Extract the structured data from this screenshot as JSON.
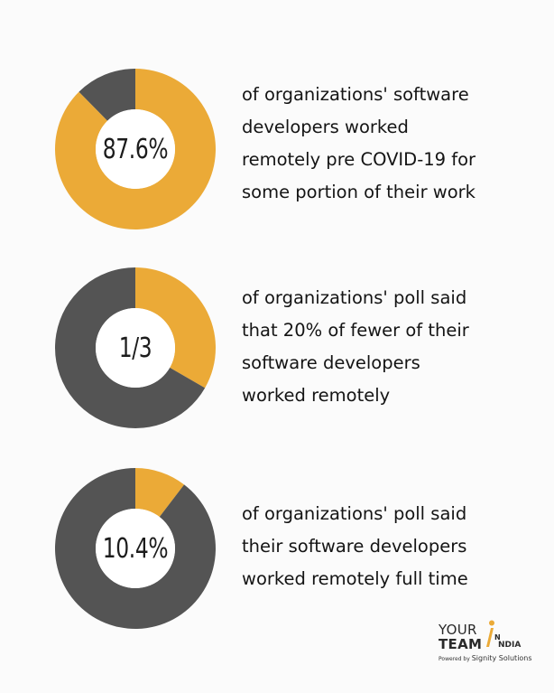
{
  "colors": {
    "accent": "#EBAA37",
    "remainder": "#545454",
    "background": "#FBFBFB",
    "text": "#141414"
  },
  "chart_data": [
    {
      "type": "pie",
      "variant": "donut",
      "center_label": "87.6%",
      "slices": [
        {
          "value": 87.6
        },
        {
          "value": 12.4
        }
      ],
      "caption_lines": [
        "of organizations' software",
        "developers worked",
        "remotely pre COVID-19 for",
        "some portion of their work"
      ]
    },
    {
      "type": "pie",
      "variant": "donut",
      "center_label": "1/3",
      "slices": [
        {
          "value": 33.3
        },
        {
          "value": 66.7
        }
      ],
      "caption_lines": [
        "of organizations' poll said",
        "that 20% of fewer of their",
        "software developers",
        "worked remotely"
      ]
    },
    {
      "type": "pie",
      "variant": "donut",
      "center_label": "10.4%",
      "slices": [
        {
          "value": 10.4
        },
        {
          "value": 89.6
        }
      ],
      "caption_lines": [
        "of organizations' poll said",
        "their software developers",
        "worked remotely full time"
      ]
    }
  ],
  "logo": {
    "line1": "YOUR",
    "line2": "TEAM",
    "n": "N",
    "india": "NDIA",
    "powered_by": "Powered by",
    "company": "Signity Solutions"
  }
}
